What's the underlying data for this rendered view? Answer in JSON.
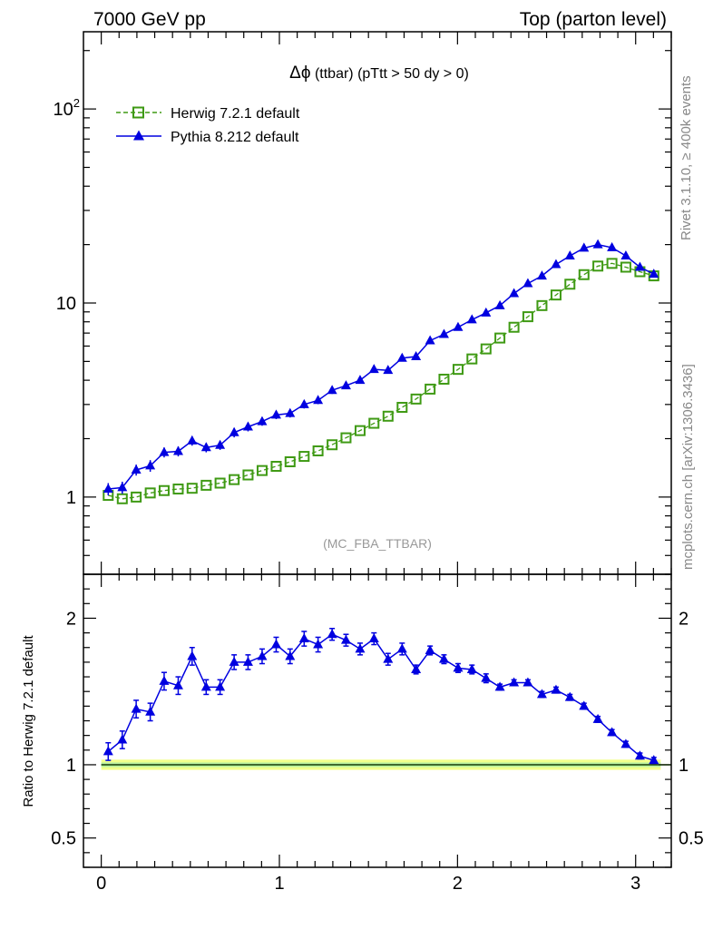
{
  "header": {
    "left": "7000 GeV pp",
    "right": "Top (parton level)"
  },
  "side": {
    "rivet": "Rivet 3.1.10, ≥ 400k events",
    "mcplots": "mcplots.cern.ch [arXiv:1306.3436]"
  },
  "plot_title": {
    "symbol": "Δϕ",
    "text": " (ttbar) (pTtt > 50 dy > 0)"
  },
  "analysis_tag": "(MC_FBA_TTBAR)",
  "ratio_ylabel": "Ratio to Herwig 7.2.1 default",
  "colors": {
    "herwig": "#3f9a14",
    "pythia": "#0000e0",
    "band_outer": "#f2ff8a",
    "band_inner": "#b8f0a0"
  },
  "chart_data": [
    {
      "type": "scatter",
      "role": "main",
      "yscale": "log",
      "xlim": [
        -0.1,
        3.2
      ],
      "ylim": [
        0.4,
        250
      ],
      "y_ticks": [
        {
          "value": 1,
          "label": "1"
        },
        {
          "value": 10,
          "label": "10"
        },
        {
          "value": 100,
          "label": "10",
          "sup": "2"
        }
      ],
      "legend_position": "top-left",
      "series": [
        {
          "name": "Herwig 7.2.1 default",
          "marker": "open-square",
          "line": "dashed",
          "x": [
            0.039,
            0.118,
            0.196,
            0.275,
            0.353,
            0.432,
            0.51,
            0.589,
            0.667,
            0.746,
            0.824,
            0.903,
            0.982,
            1.06,
            1.139,
            1.217,
            1.296,
            1.374,
            1.453,
            1.531,
            1.61,
            1.689,
            1.767,
            1.846,
            1.924,
            2.003,
            2.081,
            2.16,
            2.238,
            2.317,
            2.395,
            2.474,
            2.553,
            2.631,
            2.71,
            2.788,
            2.867,
            2.945,
            3.024,
            3.102
          ],
          "y": [
            1.02,
            0.98,
            1.0,
            1.05,
            1.08,
            1.1,
            1.11,
            1.15,
            1.18,
            1.23,
            1.3,
            1.37,
            1.44,
            1.52,
            1.62,
            1.73,
            1.86,
            2.02,
            2.2,
            2.4,
            2.61,
            2.9,
            3.2,
            3.6,
            4.05,
            4.55,
            5.15,
            5.8,
            6.6,
            7.5,
            8.5,
            9.7,
            11.0,
            12.5,
            14.0,
            15.5,
            16.0,
            15.3,
            14.5,
            13.8
          ]
        },
        {
          "name": "Pythia 8.212 default",
          "marker": "filled-triangle",
          "line": "solid",
          "x": [
            0.039,
            0.118,
            0.196,
            0.275,
            0.353,
            0.432,
            0.51,
            0.589,
            0.667,
            0.746,
            0.824,
            0.903,
            0.982,
            1.06,
            1.139,
            1.217,
            1.296,
            1.374,
            1.453,
            1.531,
            1.61,
            1.689,
            1.767,
            1.846,
            1.924,
            2.003,
            2.081,
            2.16,
            2.238,
            2.317,
            2.395,
            2.474,
            2.553,
            2.631,
            2.71,
            2.788,
            2.867,
            2.945,
            3.024,
            3.102
          ],
          "y": [
            1.1,
            1.12,
            1.38,
            1.45,
            1.7,
            1.72,
            1.95,
            1.8,
            1.85,
            2.15,
            2.3,
            2.45,
            2.65,
            2.7,
            3.0,
            3.15,
            3.55,
            3.75,
            4.0,
            4.55,
            4.5,
            5.2,
            5.3,
            6.4,
            6.9,
            7.5,
            8.2,
            8.9,
            9.7,
            11.2,
            12.6,
            13.8,
            15.8,
            17.5,
            19.2,
            20.0,
            19.3,
            17.5,
            15.3,
            14.1
          ],
          "err": [
            0.08,
            0.08,
            0.09,
            0.1,
            0.1,
            0.1,
            0.11,
            0.1,
            0.1,
            0.12,
            0.12,
            0.12,
            0.13,
            0.13,
            0.14,
            0.14,
            0.15,
            0.15,
            0.16,
            0.17,
            0.17,
            0.19,
            0.19,
            0.22,
            0.23,
            0.25,
            0.27,
            0.28,
            0.3,
            0.33,
            0.36,
            0.38,
            0.42,
            0.45,
            0.48,
            0.5,
            0.49,
            0.46,
            0.42,
            0.4
          ]
        }
      ]
    },
    {
      "type": "scatter",
      "role": "ratio",
      "xlim": [
        -0.1,
        3.2
      ],
      "ylim": [
        0.3,
        2.3
      ],
      "x_ticks": [
        {
          "value": 0,
          "label": "0"
        },
        {
          "value": 1,
          "label": "1"
        },
        {
          "value": 2,
          "label": "2"
        },
        {
          "value": 3,
          "label": "3"
        }
      ],
      "y_ticks": [
        {
          "value": 0.5,
          "label": "0.5"
        },
        {
          "value": 1,
          "label": "1"
        },
        {
          "value": 2,
          "label": "2"
        }
      ],
      "reference": 1,
      "band_halfwidth": 0.035,
      "series": [
        {
          "name": "Pythia 8.212 default",
          "x": [
            0.039,
            0.118,
            0.196,
            0.275,
            0.353,
            0.432,
            0.51,
            0.589,
            0.667,
            0.746,
            0.824,
            0.903,
            0.982,
            1.06,
            1.139,
            1.217,
            1.296,
            1.374,
            1.453,
            1.531,
            1.61,
            1.689,
            1.767,
            1.846,
            1.924,
            2.003,
            2.081,
            2.16,
            2.238,
            2.317,
            2.395,
            2.474,
            2.553,
            2.631,
            2.71,
            2.788,
            2.867,
            2.945,
            3.024,
            3.102
          ],
          "y": [
            1.09,
            1.17,
            1.38,
            1.36,
            1.57,
            1.54,
            1.74,
            1.53,
            1.53,
            1.7,
            1.7,
            1.74,
            1.82,
            1.74,
            1.86,
            1.82,
            1.89,
            1.85,
            1.79,
            1.86,
            1.72,
            1.79,
            1.65,
            1.78,
            1.72,
            1.66,
            1.65,
            1.59,
            1.53,
            1.56,
            1.56,
            1.48,
            1.51,
            1.46,
            1.4,
            1.31,
            1.22,
            1.14,
            1.06,
            1.03
          ],
          "err": [
            0.06,
            0.06,
            0.06,
            0.06,
            0.06,
            0.06,
            0.06,
            0.05,
            0.05,
            0.05,
            0.05,
            0.05,
            0.05,
            0.05,
            0.05,
            0.05,
            0.04,
            0.04,
            0.04,
            0.04,
            0.04,
            0.04,
            0.03,
            0.03,
            0.03,
            0.03,
            0.03,
            0.03,
            0.02,
            0.02,
            0.02,
            0.02,
            0.02,
            0.02,
            0.02,
            0.02,
            0.02,
            0.02,
            0.02,
            0.02
          ]
        }
      ]
    }
  ]
}
